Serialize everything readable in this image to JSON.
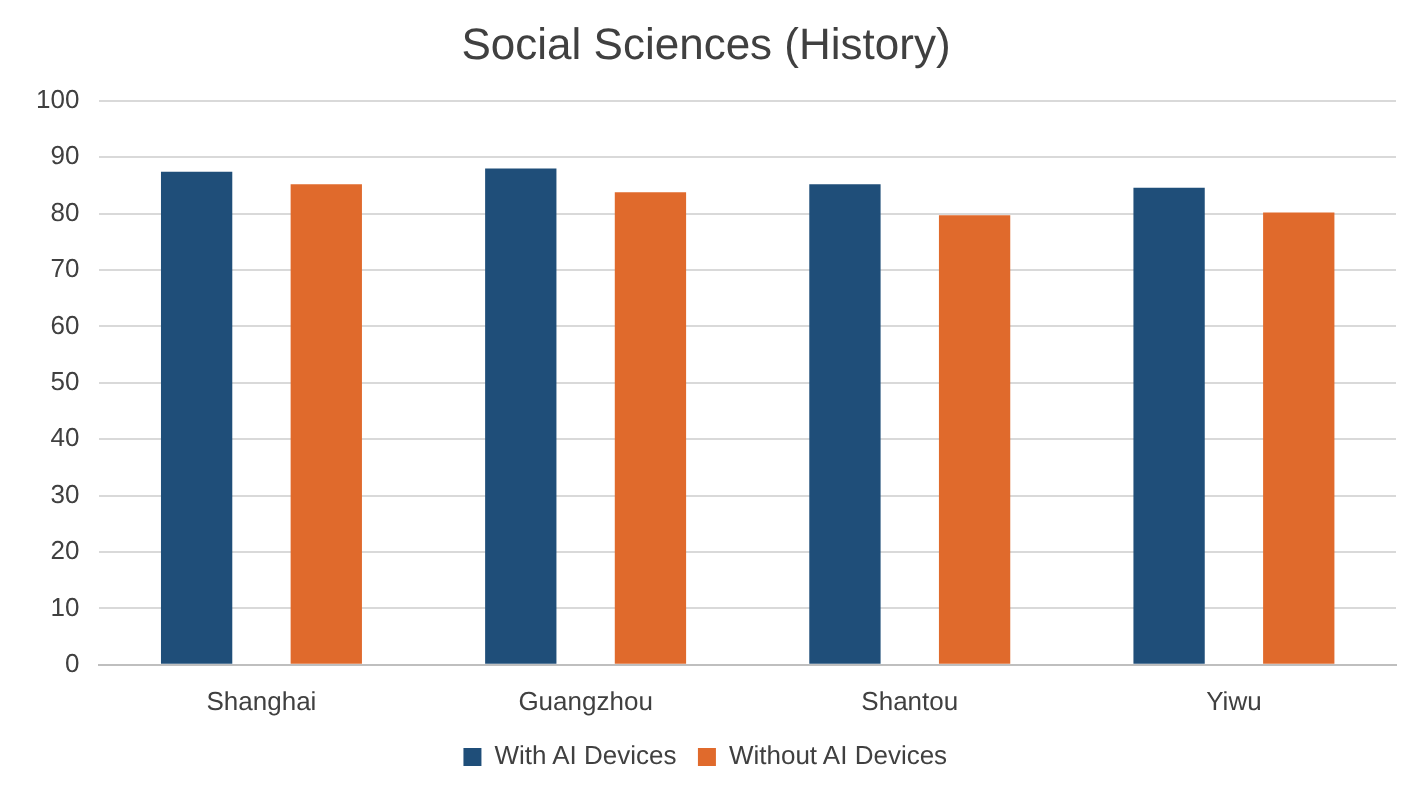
{
  "chart_data": {
    "type": "bar",
    "title": "Social Sciences (History)",
    "categories": [
      "Shanghai",
      "Guangzhou",
      "Shantou",
      "Yiwu"
    ],
    "series": [
      {
        "name": "With AI Devices",
        "color": "#1f4e79",
        "values": [
          87.4,
          88.0,
          85.2,
          84.6
        ]
      },
      {
        "name": "Without AI Devices",
        "color": "#e06a2c",
        "values": [
          85.2,
          83.8,
          79.7,
          80.2
        ]
      }
    ],
    "ylim": [
      0,
      100
    ],
    "yticks": [
      0,
      10,
      20,
      30,
      40,
      50,
      60,
      70,
      80,
      90,
      100
    ],
    "grid": "y",
    "legend": "bottom"
  }
}
